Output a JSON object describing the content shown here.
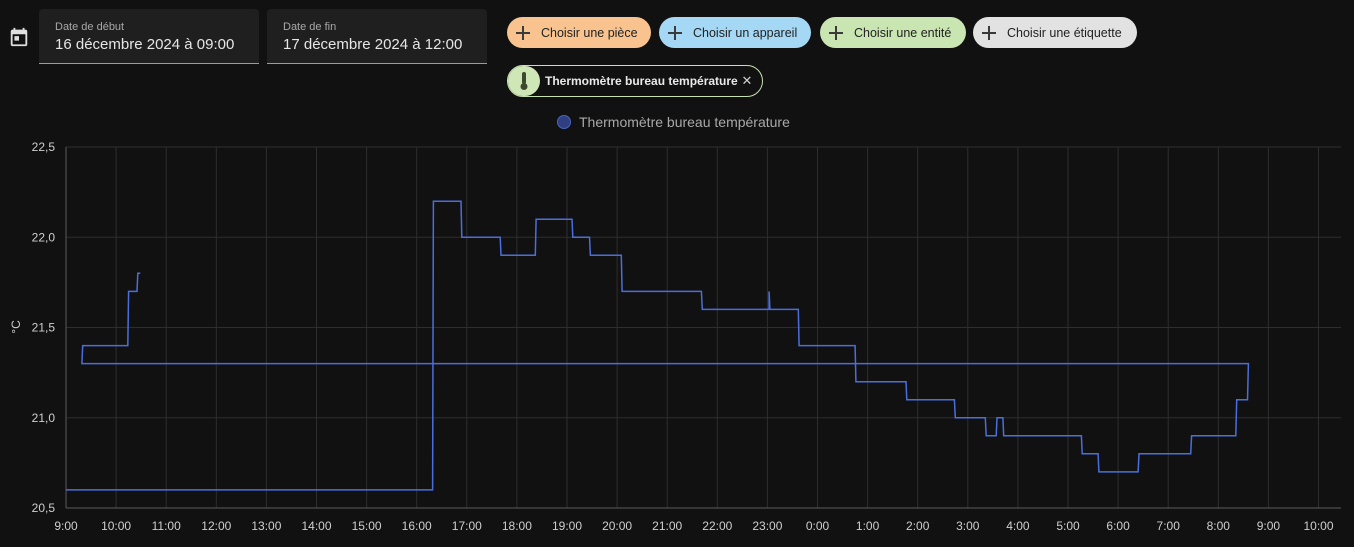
{
  "start_date": {
    "label": "Date de début",
    "value": "16 décembre 2024 à 09:00"
  },
  "end_date": {
    "label": "Date de fin",
    "value": "17 décembre 2024 à 12:00"
  },
  "pickers": [
    {
      "label": "Choisir une pièce",
      "color": "#f8c38f"
    },
    {
      "label": "Choisir un appareil",
      "color": "#a4d8f5"
    },
    {
      "label": "Choisir une entité",
      "color": "#c9e6b2"
    },
    {
      "label": "Choisir une étiquette",
      "color": "#e2e2e2"
    }
  ],
  "selected_entity": {
    "label": "Thermomètre bureau température",
    "icon": "thermometer-icon"
  },
  "chart_data": {
    "type": "line",
    "step": true,
    "legend": "top-center",
    "series": [
      {
        "name": "Thermomètre bureau température",
        "color": "#4a6fdc",
        "points": [
          [
            "09:00",
            20.6
          ],
          [
            "16:19",
            20.6
          ],
          [
            "16:20",
            22.2
          ],
          [
            "16:53",
            22.2
          ],
          [
            "16:54",
            22.0
          ],
          [
            "17:40",
            22.0
          ],
          [
            "17:41",
            21.9
          ],
          [
            "18:22",
            21.9
          ],
          [
            "18:23",
            22.1
          ],
          [
            "19:06",
            22.1
          ],
          [
            "19:07",
            22.0
          ],
          [
            "19:27",
            22.0
          ],
          [
            "19:28",
            21.9
          ],
          [
            "20:05",
            21.9
          ],
          [
            "20:06",
            21.7
          ],
          [
            "21:41",
            21.7
          ],
          [
            "21:42",
            21.6
          ],
          [
            "23:02",
            21.6
          ],
          [
            "23:02",
            21.7
          ],
          [
            "23:03",
            21.6
          ],
          [
            "23:37",
            21.6
          ],
          [
            "23:38",
            21.4
          ],
          [
            "00:45",
            21.4
          ],
          [
            "00:46",
            21.2
          ],
          [
            "01:46",
            21.2
          ],
          [
            "01:47",
            21.1
          ],
          [
            "02:44",
            21.1
          ],
          [
            "02:45",
            21.0
          ],
          [
            "03:21",
            21.0
          ],
          [
            "03:22",
            20.9
          ],
          [
            "03:34",
            20.9
          ],
          [
            "03:35",
            21.0
          ],
          [
            "03:42",
            21.0
          ],
          [
            "03:43",
            20.9
          ],
          [
            "05:16",
            20.9
          ],
          [
            "05:17",
            20.8
          ],
          [
            "05:36",
            20.8
          ],
          [
            "05:37",
            20.7
          ],
          [
            "06:24",
            20.7
          ],
          [
            "06:25",
            20.8
          ],
          [
            "07:27",
            20.8
          ],
          [
            "07:28",
            20.9
          ],
          [
            "08:21",
            20.9
          ],
          [
            "08:22",
            21.1
          ],
          [
            "08:35",
            21.1
          ],
          [
            "08:36",
            21.3
          ],
          [
            "09:19",
            21.3
          ],
          [
            "09:20",
            21.4
          ],
          [
            "10:14",
            21.4
          ],
          [
            "10:15",
            21.7
          ],
          [
            "10:25",
            21.7
          ],
          [
            "10:26",
            21.8
          ],
          [
            "10:29",
            21.8
          ]
        ]
      }
    ],
    "x_ticks": [
      "9:00",
      "10:00",
      "11:00",
      "12:00",
      "13:00",
      "14:00",
      "15:00",
      "16:00",
      "17:00",
      "18:00",
      "19:00",
      "20:00",
      "21:00",
      "22:00",
      "23:00",
      "0:00",
      "1:00",
      "2:00",
      "3:00",
      "4:00",
      "5:00",
      "6:00",
      "7:00",
      "8:00",
      "9:00",
      "10:00"
    ],
    "y_ticks": [
      "22,5",
      "22,0",
      "21,5",
      "21,0",
      "20,5"
    ],
    "ylim": [
      20.5,
      22.5
    ],
    "ylabel": "°C",
    "grid": true
  }
}
